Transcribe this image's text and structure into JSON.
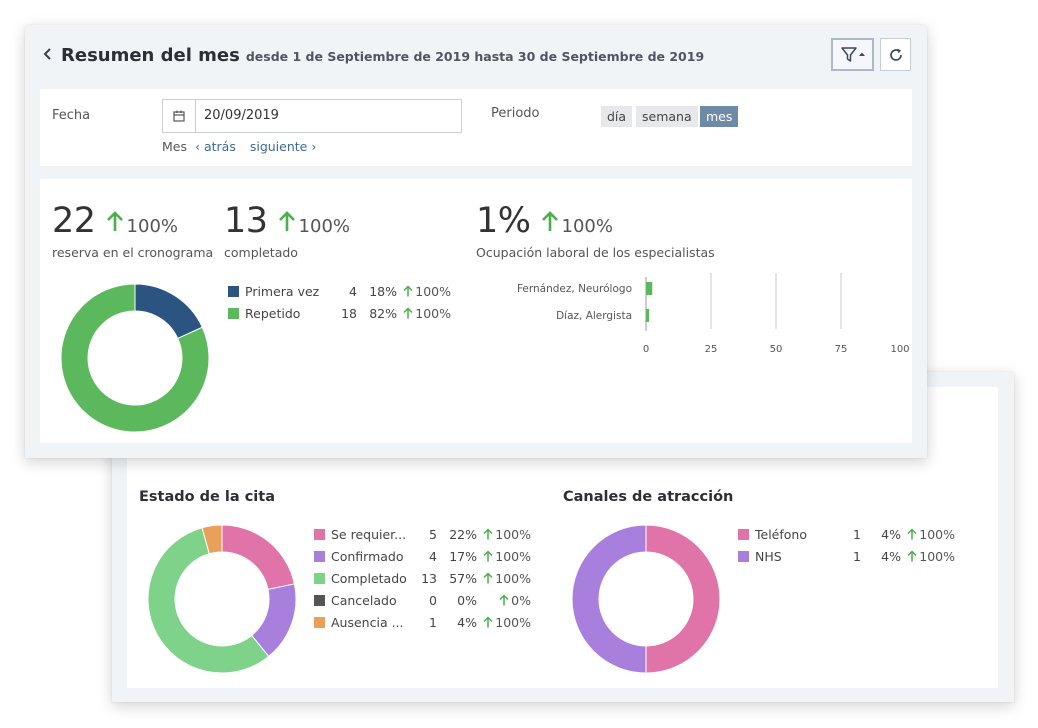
{
  "header": {
    "title": "Resumen del mes",
    "range": "desde 1 de Septiembre de 2019 hasta 30 de Septiembre de 2019"
  },
  "filters": {
    "date_label": "Fecha",
    "date_value": "20/09/2019",
    "period_label": "Periodo",
    "period_options": [
      "día",
      "semana",
      "mes"
    ],
    "period_selected": "mes",
    "nav_label": "Mes",
    "back": "atrás",
    "next": "siguiente"
  },
  "stats": {
    "bookings": {
      "value": "22",
      "change": "100%",
      "caption": "reserva en el cronograma"
    },
    "completed": {
      "value": "13",
      "change": "100%",
      "caption": "completado"
    },
    "occupancy": {
      "value": "1%",
      "change": "100%",
      "caption": "Ocupación laboral de los especialistas"
    }
  },
  "colors": {
    "green": "#5cb85c",
    "navy": "#2c5480",
    "pink": "#e074a8",
    "purple": "#a97fdd",
    "light_green": "#7fd28a",
    "gray": "#555555",
    "orange": "#e9a05a",
    "up_arrow": "#4cae4c"
  },
  "visit_type": {
    "items": [
      {
        "label": "Primera vez",
        "count": "4",
        "percent": "18%",
        "change": "100%",
        "color": "#2c5480"
      },
      {
        "label": "Repetido",
        "count": "18",
        "percent": "82%",
        "change": "100%",
        "color": "#5cb85c"
      }
    ]
  },
  "occupancy_chart": {
    "categories": [
      "Fernández, Neurólogo",
      "Díaz, Alergista"
    ],
    "values": [
      2,
      1
    ],
    "ticks": [
      "0",
      "25",
      "50",
      "75",
      "100"
    ]
  },
  "status": {
    "title": "Estado de la cita",
    "items": [
      {
        "label": "Se requier...",
        "count": "5",
        "percent": "22%",
        "change": "100%",
        "color": "#e074a8"
      },
      {
        "label": "Confirmado",
        "count": "4",
        "percent": "17%",
        "change": "100%",
        "color": "#a97fdd"
      },
      {
        "label": "Completado",
        "count": "13",
        "percent": "57%",
        "change": "100%",
        "color": "#7fd28a"
      },
      {
        "label": "Cancelado",
        "count": "0",
        "percent": "0%",
        "change": "0%",
        "color": "#555555"
      },
      {
        "label": "Ausencia ...",
        "count": "1",
        "percent": "4%",
        "change": "100%",
        "color": "#e9a05a"
      }
    ]
  },
  "channels": {
    "title": "Canales de atracción",
    "items": [
      {
        "label": "Teléfono",
        "count": "1",
        "percent": "4%",
        "change": "100%",
        "color": "#e074a8"
      },
      {
        "label": "NHS",
        "count": "1",
        "percent": "4%",
        "change": "100%",
        "color": "#a97fdd"
      }
    ]
  },
  "chart_data": [
    {
      "type": "pie",
      "categories": [
        "Primera vez",
        "Repetido"
      ],
      "values": [
        4,
        18
      ],
      "title": ""
    },
    {
      "type": "bar",
      "orientation": "horizontal",
      "title": "Ocupación laboral de los especialistas",
      "categories": [
        "Fernández, Neurólogo",
        "Díaz, Alergista"
      ],
      "values": [
        2,
        1
      ],
      "xlim": [
        0,
        100
      ],
      "grid": true
    },
    {
      "type": "pie",
      "title": "Estado de la cita",
      "categories": [
        "Se requier...",
        "Confirmado",
        "Completado",
        "Cancelado",
        "Ausencia ..."
      ],
      "values": [
        5,
        4,
        13,
        0,
        1
      ]
    },
    {
      "type": "pie",
      "title": "Canales de atracción",
      "categories": [
        "Teléfono",
        "NHS"
      ],
      "values": [
        1,
        1
      ]
    }
  ]
}
